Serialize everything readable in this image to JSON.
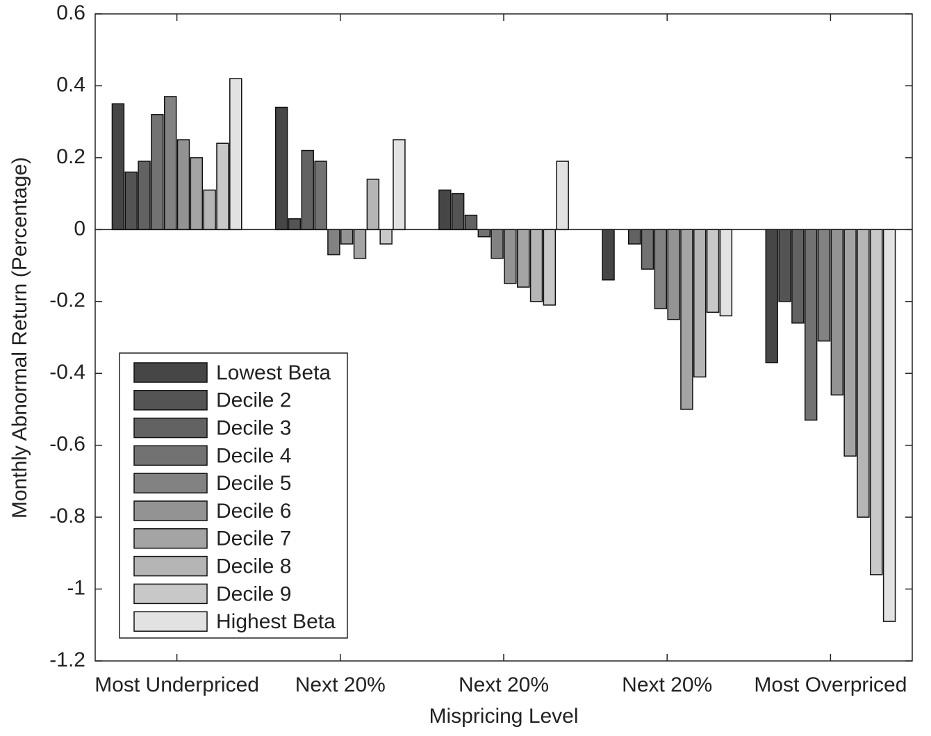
{
  "chart_data": {
    "type": "bar",
    "x_label": "Mispricing Level",
    "y_label": "Monthly Abnormal Return (Percentage)",
    "categories": [
      "Most Underpriced",
      "Next 20%",
      "Next 20%",
      "Next 20%",
      "Most Overpriced"
    ],
    "series": [
      {
        "name": "Lowest Beta",
        "color": "#464646",
        "values": [
          0.35,
          0.34,
          0.11,
          -0.14,
          -0.37
        ]
      },
      {
        "name": "Decile 2",
        "color": "#545454",
        "values": [
          0.16,
          0.03,
          0.1,
          0,
          -0.2
        ]
      },
      {
        "name": "Decile 3",
        "color": "#626262",
        "values": [
          0.19,
          0.22,
          0.04,
          -0.04,
          -0.26
        ]
      },
      {
        "name": "Decile 4",
        "color": "#727272",
        "values": [
          0.32,
          0.19,
          -0.02,
          -0.11,
          -0.53
        ]
      },
      {
        "name": "Decile 5",
        "color": "#828282",
        "values": [
          0.37,
          -0.07,
          -0.08,
          -0.22,
          -0.31
        ]
      },
      {
        "name": "Decile 6",
        "color": "#939393",
        "values": [
          0.25,
          -0.04,
          -0.15,
          -0.25,
          -0.46
        ]
      },
      {
        "name": "Decile 7",
        "color": "#a4a4a4",
        "values": [
          0.2,
          -0.08,
          -0.16,
          -0.5,
          -0.63
        ]
      },
      {
        "name": "Decile 8",
        "color": "#b5b5b5",
        "values": [
          0.11,
          0.14,
          -0.2,
          -0.41,
          -0.8
        ]
      },
      {
        "name": "Decile 9",
        "color": "#c8c8c8",
        "values": [
          0.24,
          -0.04,
          -0.21,
          -0.23,
          -0.96
        ]
      },
      {
        "name": "Highest Beta",
        "color": "#e2e2e2",
        "values": [
          0.42,
          0.25,
          0.19,
          -0.24,
          -1.09
        ]
      }
    ],
    "ylim": [
      -1.2,
      0.6
    ],
    "yticks": [
      -1.2,
      -1,
      -0.8,
      -0.6,
      -0.4,
      -0.2,
      0,
      0.2,
      0.4,
      0.6
    ],
    "grid": false,
    "legend": "lower left"
  }
}
